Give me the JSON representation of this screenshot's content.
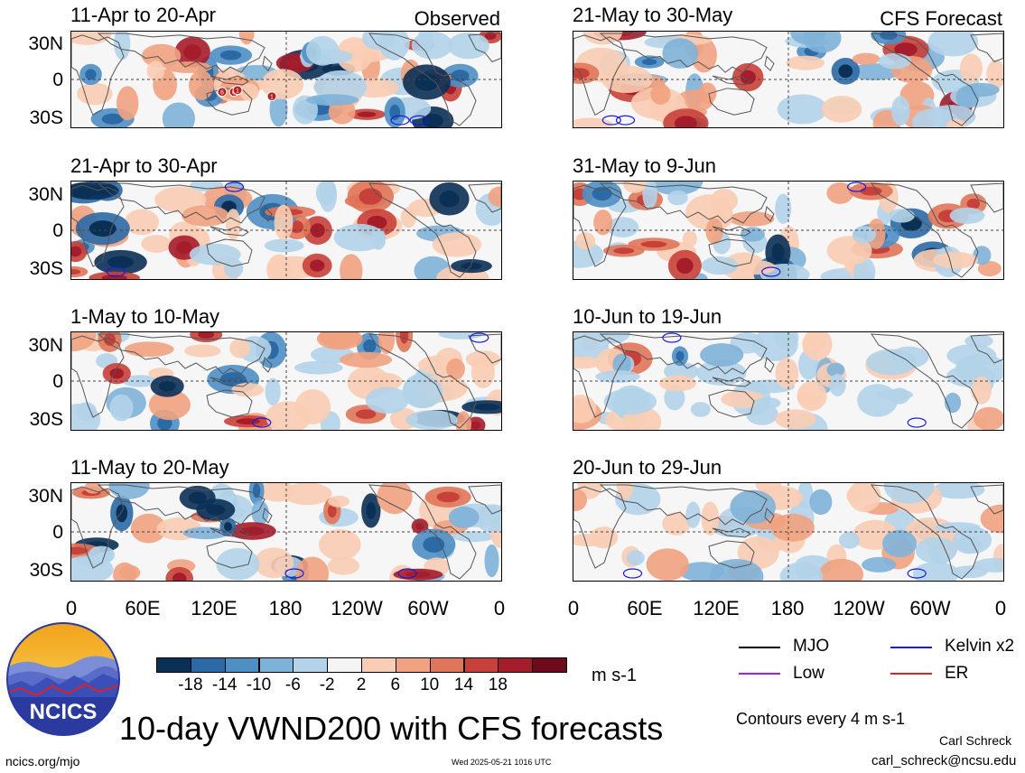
{
  "observed_tag": "Observed",
  "forecast_tag": "CFS Forecast",
  "panels": [
    {
      "date": "11-Apr to 20-Apr"
    },
    {
      "date": "21-Apr to 30-Apr"
    },
    {
      "date": "1-May to 10-May"
    },
    {
      "date": "11-May to 20-May"
    },
    {
      "date": "21-May to 30-May"
    },
    {
      "date": "31-May to 9-Jun"
    },
    {
      "date": "10-Jun to 19-Jun"
    },
    {
      "date": "20-Jun to 29-Jun"
    }
  ],
  "lat_labels": [
    "30N",
    "0",
    "30S"
  ],
  "lon_labels": [
    "0",
    "60E",
    "120E",
    "180",
    "120W",
    "60W",
    "0"
  ],
  "colorbar": {
    "colors": [
      "#0b3055",
      "#2c6aa6",
      "#4f8fc4",
      "#7fb2d8",
      "#b2d3e9",
      "#f4f4f4",
      "#f9cdb4",
      "#f1a280",
      "#e07659",
      "#c8403a",
      "#a51c2b",
      "#6d0a1e"
    ],
    "labels": [
      "-18",
      "-14",
      "-10",
      "-6",
      "-2",
      "2",
      "6",
      "10",
      "14",
      "18"
    ],
    "units": "m s-1"
  },
  "legend": {
    "mjo": "MJO",
    "kelvin": "Kelvin x2",
    "low": "Low",
    "er": "ER",
    "colors": {
      "mjo": "#000000",
      "kelvin": "#1a1adc",
      "low": "#a020f0",
      "er": "#e02020"
    }
  },
  "contours_note": "Contours every 4 m s-1",
  "title": "10-day VWND200 with CFS forecasts",
  "logo_text": "NCICS",
  "footer": {
    "url": "ncics.org/mjo",
    "timestamp": "Wed 2025-05-21 1016 UTC",
    "author": "Carl Schreck",
    "email": "carl_schreck@ncsu.edu"
  },
  "storm_markers": [
    "6",
    "6",
    "1",
    "1"
  ]
}
